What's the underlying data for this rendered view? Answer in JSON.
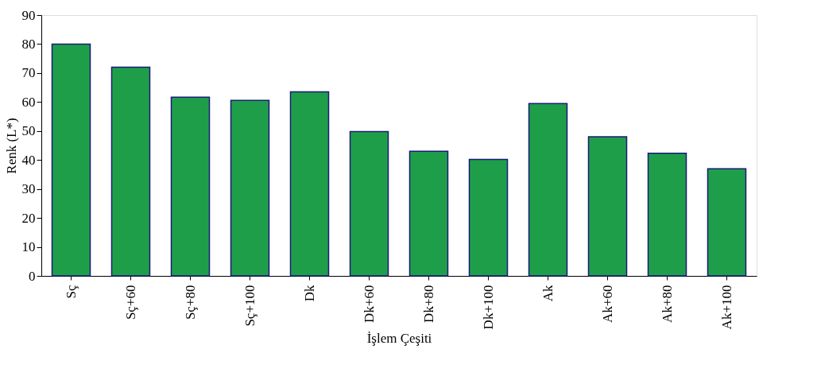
{
  "chart_data": {
    "type": "bar",
    "xlabel": "İşlem Çeşiti",
    "ylabel": "Renk (L*)",
    "categories": [
      "Sç",
      "Sç+60",
      "Sç+80",
      "Sç+100",
      "Dk",
      "Dk+60",
      "Dk+80",
      "Dk+100",
      "Ak",
      "Ak+60",
      "Ak+80",
      "Ak+100"
    ],
    "values": [
      80,
      72,
      61.7,
      60.6,
      63.5,
      49.8,
      43,
      40.2,
      59.5,
      48,
      42.3,
      37
    ],
    "colors": [
      "#1f9e4a",
      "#1f9e4a",
      "#1f9e4a",
      "#1f9e4a",
      "#1f9e4a",
      "#1f9e4a",
      "#1f9e4a",
      "#1f9e4a",
      "#1f9e4a",
      "#1f9e4a",
      "#1f9e4a",
      "#1f9e4a"
    ],
    "ylim": [
      0,
      90
    ],
    "yticks": [
      0,
      10,
      20,
      30,
      40,
      50,
      60,
      70,
      80,
      90
    ],
    "grid": false
  }
}
